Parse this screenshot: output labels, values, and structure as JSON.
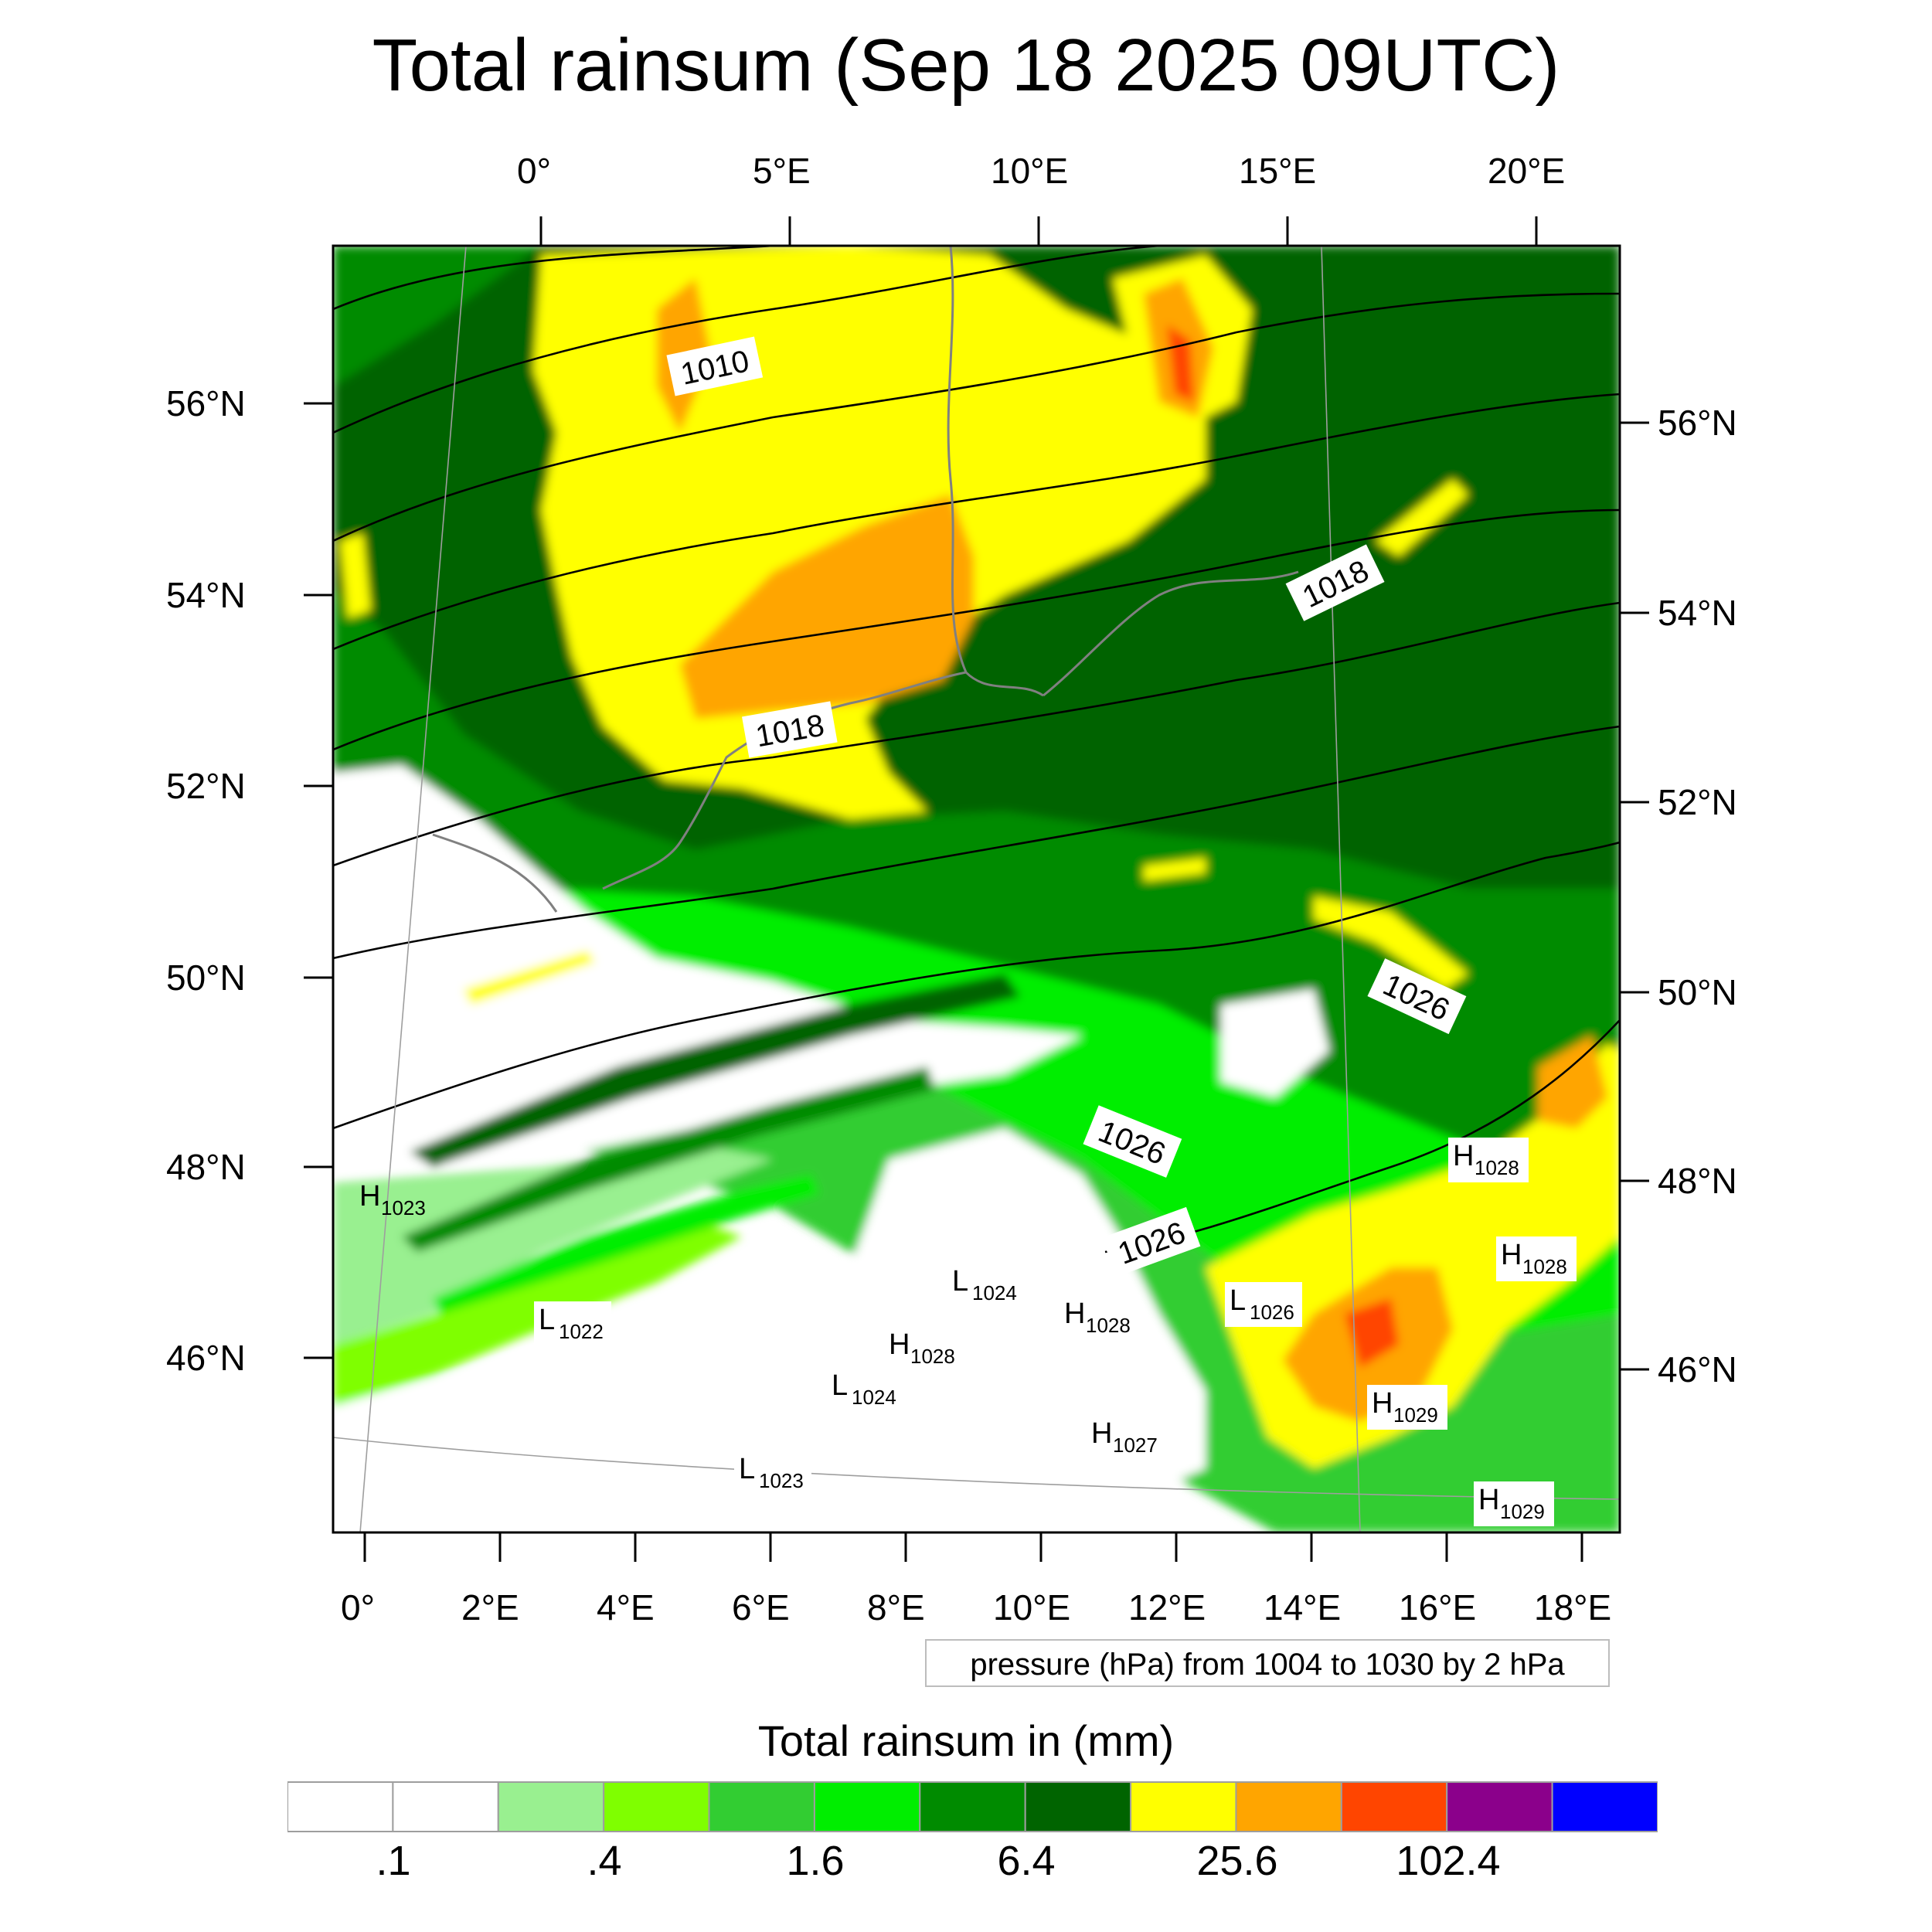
{
  "title": "Total rainsum (Sep 18 2025 09UTC)",
  "top_lon_labels": [
    "0°",
    "5°E",
    "10°E",
    "15°E",
    "20°E"
  ],
  "bottom_lon_labels": [
    "0°",
    "2°E",
    "4°E",
    "6°E",
    "8°E",
    "10°E",
    "12°E",
    "14°E",
    "16°E",
    "18°E"
  ],
  "left_lat_labels": [
    "56°N",
    "54°N",
    "52°N",
    "50°N",
    "48°N",
    "46°N"
  ],
  "right_lat_labels": [
    "56°N",
    "54°N",
    "52°N",
    "50°N",
    "48°N",
    "46°N"
  ],
  "isobar_labels": [
    "1010",
    "1018",
    "1018",
    "1026",
    "1026",
    "1026"
  ],
  "pressure_centers": [
    {
      "letter": "H",
      "value": "1023"
    },
    {
      "letter": "L",
      "value": "1022"
    },
    {
      "letter": "L",
      "value": "1024"
    },
    {
      "letter": "H",
      "value": "1028"
    },
    {
      "letter": "H",
      "value": "1028"
    },
    {
      "letter": "L",
      "value": "1024"
    },
    {
      "letter": "L",
      "value": "1023"
    },
    {
      "letter": "H",
      "value": "1027"
    },
    {
      "letter": "L",
      "value": "1026"
    },
    {
      "letter": "H",
      "value": "1028"
    },
    {
      "letter": "H",
      "value": "1028"
    },
    {
      "letter": "H",
      "value": "1029"
    },
    {
      "letter": "H",
      "value": "1029"
    }
  ],
  "pressure_note": "pressure (hPa) from 1004 to 1030 by 2 hPa",
  "colorbar": {
    "title": "Total rainsum in (mm)",
    "labels": [
      ".1",
      ".4",
      "1.6",
      "6.4",
      "25.6",
      "102.4"
    ],
    "colors": [
      "#ffffff",
      "#ffffff",
      "#99f090",
      "#7fff00",
      "#32cd32",
      "#00ee00",
      "#008b00",
      "#006400",
      "#ffff00",
      "#ffa500",
      "#ff4500",
      "#8b008b",
      "#0000ff"
    ]
  },
  "field_colors": {
    "white": "#ffffff",
    "pale": "#99f090",
    "lime": "#7fff00",
    "mid": "#32cd32",
    "bright": "#00ee00",
    "green": "#008b00",
    "dark": "#006400",
    "yellow": "#ffff00",
    "orange": "#ffa500",
    "red": "#ff4500"
  }
}
